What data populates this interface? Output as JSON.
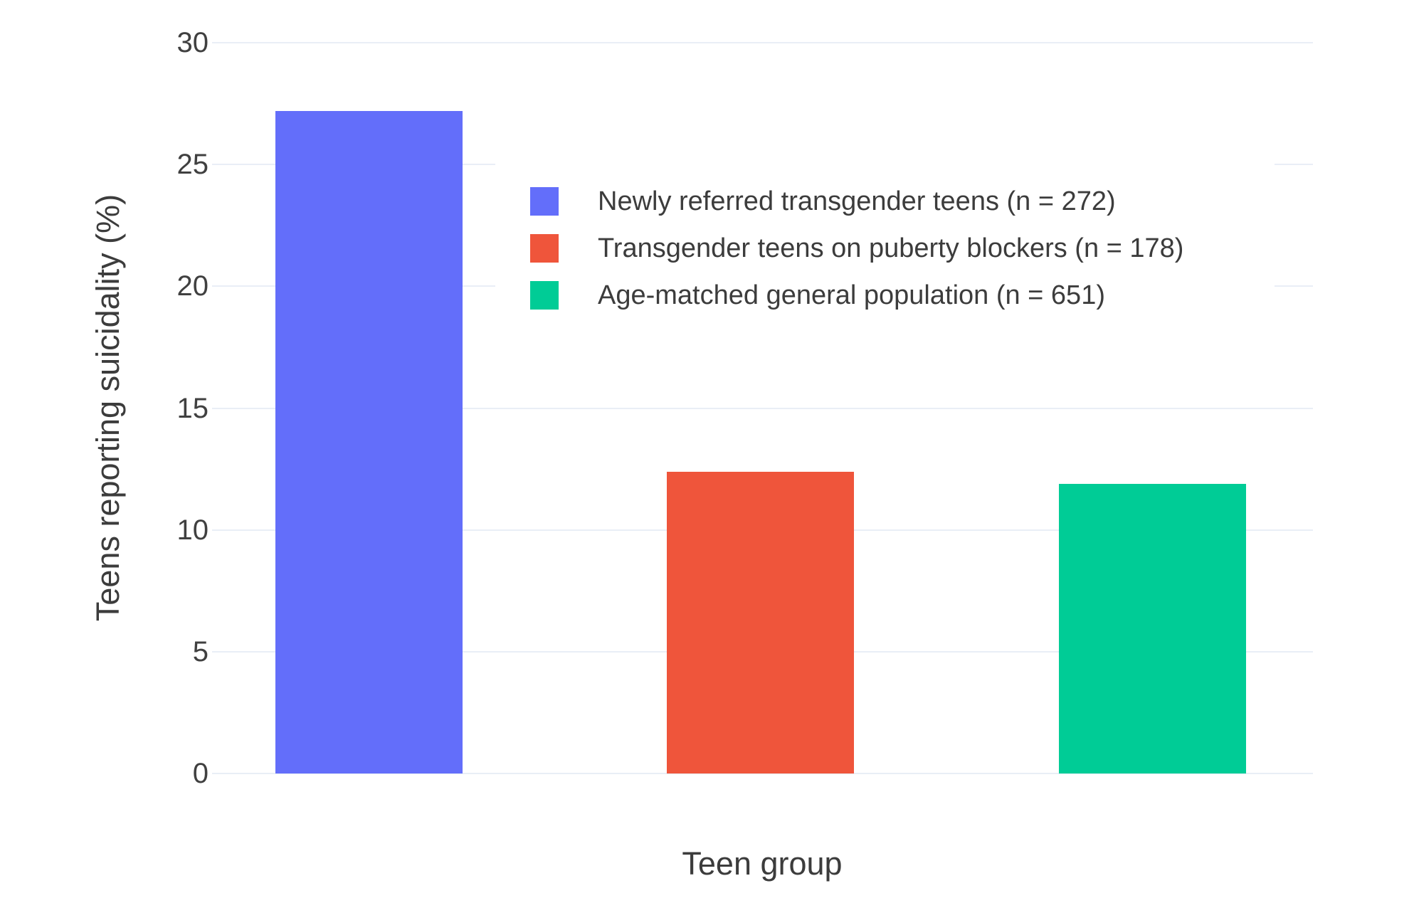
{
  "figure": {
    "background_color": "#ffffff",
    "grid_color": "#e9eef6",
    "text_color": "#3c3c3c"
  },
  "chart_data": {
    "type": "bar",
    "title": "",
    "xlabel": "Teen group",
    "ylabel": "Teens reporting suicidality (%)",
    "ylim": [
      0,
      30
    ],
    "yticks": [
      0,
      5,
      10,
      15,
      20,
      25,
      30
    ],
    "grid": true,
    "legend_position": "inside-upper-right",
    "series": [
      {
        "name": "Newly referred transgender teens (n = 272)",
        "value": 27.2,
        "color": "#636efa"
      },
      {
        "name": "Transgender teens on puberty blockers (n = 178)",
        "value": 12.4,
        "color": "#ef553b"
      },
      {
        "name": "Age-matched general population (n = 651)",
        "value": 11.9,
        "color": "#00cc96"
      }
    ]
  }
}
